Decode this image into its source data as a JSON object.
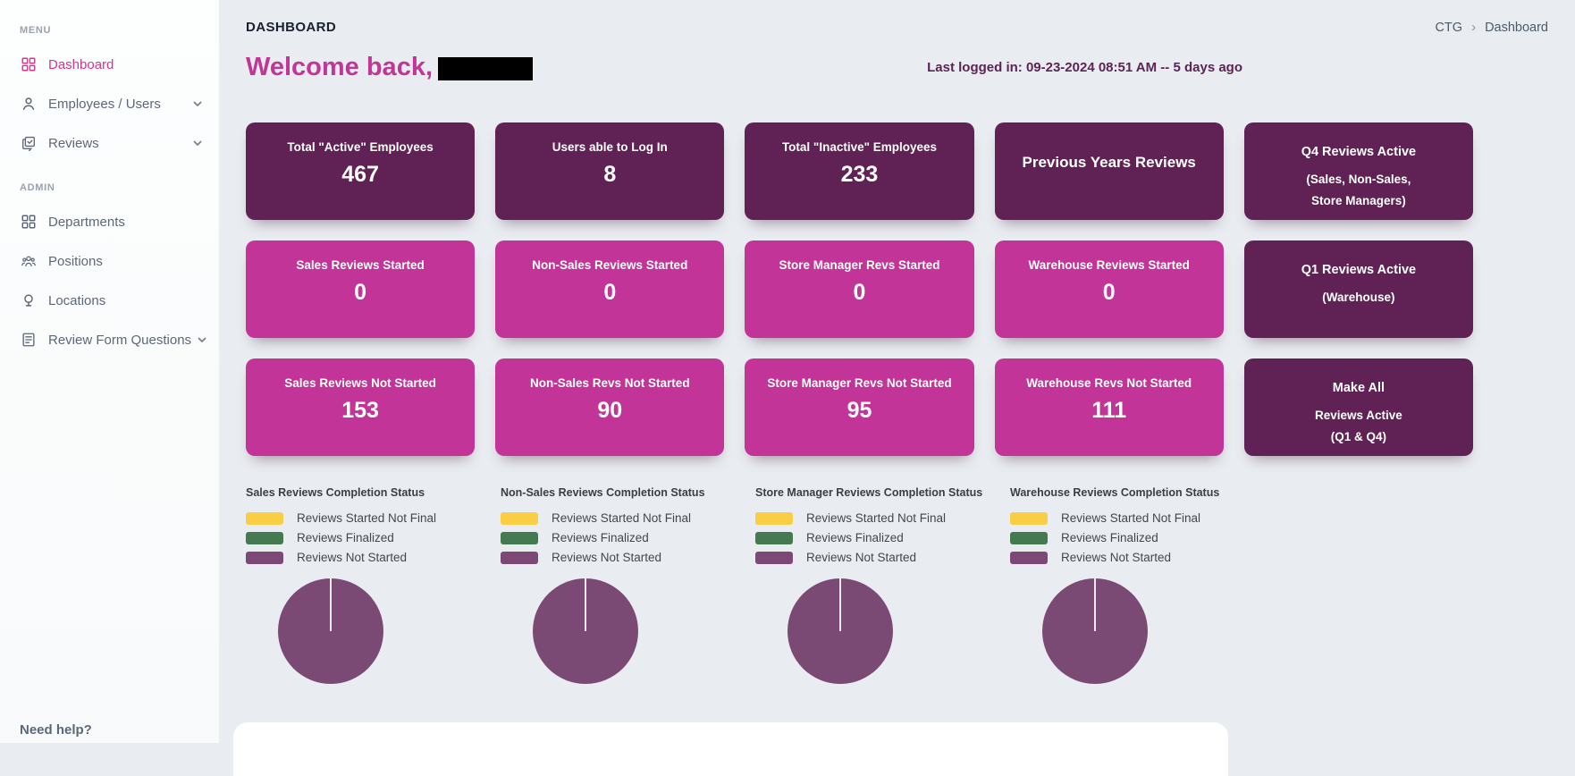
{
  "app": {
    "page_title": "DASHBOARD",
    "breadcrumb": {
      "items": [
        "CTG",
        "Dashboard"
      ],
      "separator": "›"
    },
    "welcome_text": "Welcome back,",
    "welcome_name_redacted": true,
    "last_login": "Last logged in: 09-23-2024 08:51 AM -- 5 days ago",
    "need_help": "Need help?"
  },
  "colors": {
    "accent_pink": "#d23590",
    "card_dark": "#602254",
    "card_pink": "#c23497",
    "pie_purple": "#7b4a74",
    "main_background": "#e9edf1",
    "welcome_pink": "#c23697",
    "last_login_purple": "#5c2355"
  },
  "sidebar": {
    "sections": [
      {
        "label": "MENU",
        "items": [
          {
            "label": "Dashboard",
            "icon": "dashboard-grid",
            "active": true,
            "chevron": false
          },
          {
            "label": "Employees / Users",
            "icon": "user",
            "active": false,
            "chevron": true
          },
          {
            "label": "Reviews",
            "icon": "reviews-check",
            "active": false,
            "chevron": true
          }
        ]
      },
      {
        "label": "ADMIN",
        "items": [
          {
            "label": "Departments",
            "icon": "grid",
            "active": false,
            "chevron": false
          },
          {
            "label": "Positions",
            "icon": "people-group",
            "active": false,
            "chevron": false
          },
          {
            "label": "Locations",
            "icon": "location-pin",
            "active": false,
            "chevron": false
          },
          {
            "label": "Review Form Questions",
            "icon": "form-document",
            "active": false,
            "chevron": true
          }
        ]
      }
    ]
  },
  "stat_cards": {
    "rows": [
      [
        {
          "lines": [
            "Total \"Active\" Employees"
          ],
          "value": "467",
          "variant": "dark",
          "interactable": false
        },
        {
          "lines": [
            "Users able to Log In"
          ],
          "value": "8",
          "variant": "dark",
          "interactable": false
        },
        {
          "lines": [
            "Total \"Inactive\" Employees"
          ],
          "value": "233",
          "variant": "dark",
          "interactable": false
        },
        {
          "lines": [
            "Previous Years Reviews"
          ],
          "value": "",
          "variant": "dark",
          "emphasis": true,
          "interactable": true
        },
        {
          "lines": [
            "Q4 Reviews Active",
            "(Sales, Non-Sales,",
            "Store Managers)"
          ],
          "value": "",
          "variant": "dark",
          "interactable": true
        }
      ],
      [
        {
          "lines": [
            "Sales Reviews Started"
          ],
          "value": "0",
          "variant": "pink",
          "interactable": false
        },
        {
          "lines": [
            "Non-Sales Reviews Started"
          ],
          "value": "0",
          "variant": "pink",
          "interactable": false
        },
        {
          "lines": [
            "Store Manager Revs Started"
          ],
          "value": "0",
          "variant": "pink",
          "interactable": false
        },
        {
          "lines": [
            "Warehouse Reviews Started"
          ],
          "value": "0",
          "variant": "pink",
          "interactable": false
        },
        {
          "lines": [
            "Q1 Reviews Active",
            "(Warehouse)"
          ],
          "value": "",
          "variant": "dark",
          "interactable": true
        }
      ],
      [
        {
          "lines": [
            "Sales Reviews Not Started"
          ],
          "value": "153",
          "variant": "pink",
          "interactable": false
        },
        {
          "lines": [
            "Non-Sales Revs Not Started"
          ],
          "value": "90",
          "variant": "pink",
          "interactable": false
        },
        {
          "lines": [
            "Store Manager Revs Not Started"
          ],
          "value": "95",
          "variant": "pink",
          "interactable": false
        },
        {
          "lines": [
            "Warehouse Revs Not Started"
          ],
          "value": "111",
          "variant": "pink",
          "interactable": false
        },
        {
          "lines": [
            "Make All",
            "Reviews Active",
            "(Q1 & Q4)"
          ],
          "value": "",
          "variant": "dark",
          "interactable": true
        }
      ]
    ]
  },
  "charts": {
    "pie_color": "#7b4a74",
    "legend": [
      {
        "label": "Reviews Started Not Final",
        "color": "#f9ce45"
      },
      {
        "label": "Reviews Finalized",
        "color": "#45794f"
      },
      {
        "label": "Reviews Not Started",
        "color": "#7c4876"
      }
    ],
    "items": [
      {
        "title": "Sales Reviews Completion Status",
        "chart_data": {
          "type": "pie",
          "categories": [
            "Reviews Started Not Final",
            "Reviews Finalized",
            "Reviews Not Started"
          ],
          "values": [
            0,
            0,
            153
          ]
        }
      },
      {
        "title": "Non-Sales Reviews Completion Status",
        "chart_data": {
          "type": "pie",
          "categories": [
            "Reviews Started Not Final",
            "Reviews Finalized",
            "Reviews Not Started"
          ],
          "values": [
            0,
            0,
            90
          ]
        }
      },
      {
        "title": "Store Manager Reviews Completion Status",
        "chart_data": {
          "type": "pie",
          "categories": [
            "Reviews Started Not Final",
            "Reviews Finalized",
            "Reviews Not Started"
          ],
          "values": [
            0,
            0,
            95
          ]
        }
      },
      {
        "title": "Warehouse Reviews Completion Status",
        "chart_data": {
          "type": "pie",
          "categories": [
            "Reviews Started Not Final",
            "Reviews Finalized",
            "Reviews Not Started"
          ],
          "values": [
            0,
            0,
            111
          ]
        }
      }
    ]
  }
}
